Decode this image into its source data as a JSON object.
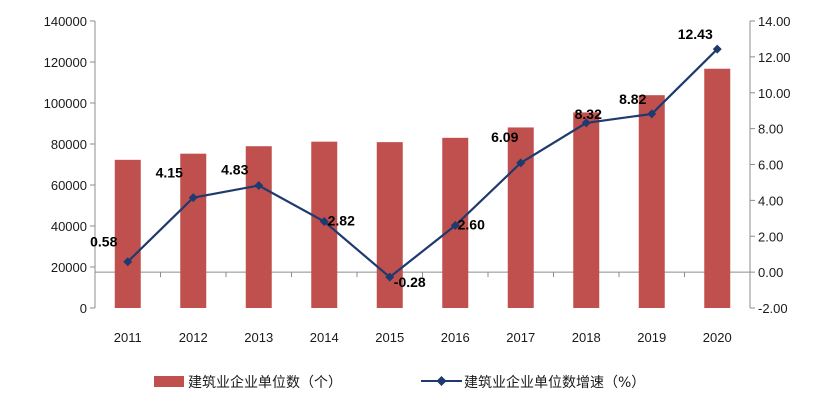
{
  "chart_data": {
    "type": "bar+line",
    "categories": [
      "2011",
      "2012",
      "2013",
      "2014",
      "2015",
      "2016",
      "2017",
      "2018",
      "2019",
      "2020"
    ],
    "series": [
      {
        "name": "建筑业企业单位数（个）",
        "type": "bar",
        "axis": "left",
        "color": "#c0504d",
        "values": [
          72280,
          75280,
          78919,
          81141,
          80911,
          83017,
          88074,
          95400,
          103814,
          116716
        ]
      },
      {
        "name": "建筑业企业单位数增速（%）",
        "type": "line",
        "axis": "right",
        "color": "#1f3a6e",
        "marker": "diamond",
        "values": [
          0.58,
          4.15,
          4.83,
          2.82,
          -0.28,
          2.6,
          6.09,
          8.32,
          8.82,
          12.43
        ],
        "labels": [
          "0.58",
          "4.15",
          "4.83",
          "2.82",
          "-0.28",
          "2.60",
          "6.09",
          "8.32",
          "8.82",
          "12.43"
        ]
      }
    ],
    "y_left": {
      "min": 0,
      "max": 140000,
      "step": 20000,
      "ticks": [
        "0",
        "20000",
        "40000",
        "60000",
        "80000",
        "100000",
        "120000",
        "140000"
      ]
    },
    "y_right": {
      "min": -2,
      "max": 14,
      "step": 2,
      "ticks": [
        "-2.00",
        "0.00",
        "2.00",
        "4.00",
        "6.00",
        "8.00",
        "10.00",
        "12.00",
        "14.00"
      ]
    },
    "grid": false,
    "legend_position": "bottom"
  }
}
